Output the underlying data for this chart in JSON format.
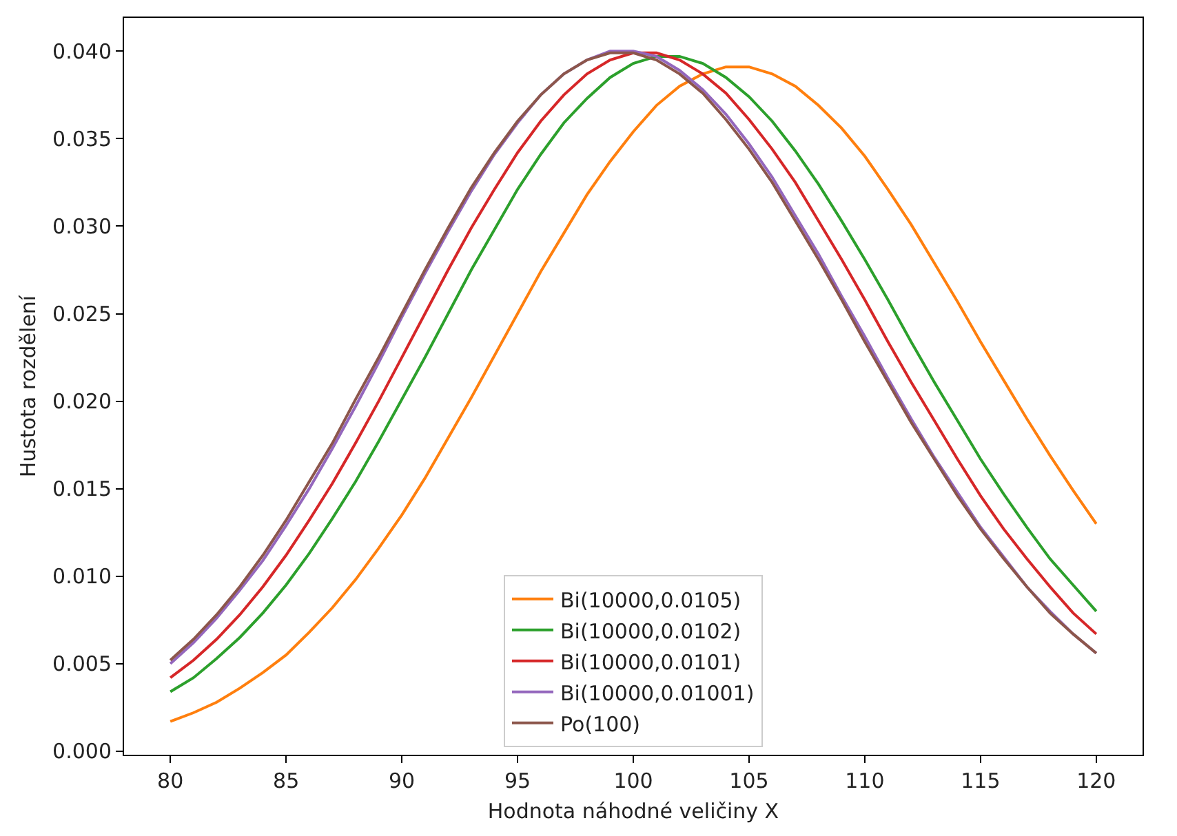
{
  "chart_data": {
    "type": "line",
    "xlabel": "Hodnota náhodné veličiny X",
    "ylabel": "Hustota rozdělení",
    "x": [
      80,
      81,
      82,
      83,
      84,
      85,
      86,
      87,
      88,
      89,
      90,
      91,
      92,
      93,
      94,
      95,
      96,
      97,
      98,
      99,
      100,
      101,
      102,
      103,
      104,
      105,
      106,
      107,
      108,
      109,
      110,
      111,
      112,
      113,
      114,
      115,
      116,
      117,
      118,
      119,
      120
    ],
    "series": [
      {
        "name": "Bi(10000,0.0105)",
        "color": "#ff7f0e",
        "values": [
          0.0017,
          0.0022,
          0.0028,
          0.0036,
          0.0045,
          0.0055,
          0.0068,
          0.0082,
          0.0098,
          0.0116,
          0.0135,
          0.0156,
          0.0179,
          0.0202,
          0.0226,
          0.025,
          0.0274,
          0.0296,
          0.0318,
          0.0337,
          0.0354,
          0.0369,
          0.038,
          0.0387,
          0.0391,
          0.0391,
          0.0387,
          0.038,
          0.0369,
          0.0356,
          0.034,
          0.0321,
          0.0301,
          0.0279,
          0.0257,
          0.0234,
          0.0212,
          0.019,
          0.0169,
          0.0149,
          0.013
        ]
      },
      {
        "name": "Bi(10000,0.0102)",
        "color": "#2ca02c",
        "values": [
          0.0034,
          0.0042,
          0.0053,
          0.0065,
          0.0079,
          0.0095,
          0.0113,
          0.0133,
          0.0154,
          0.0177,
          0.0201,
          0.0225,
          0.025,
          0.0275,
          0.0298,
          0.0321,
          0.0341,
          0.0359,
          0.0373,
          0.0385,
          0.0393,
          0.0397,
          0.0397,
          0.0393,
          0.0385,
          0.0374,
          0.036,
          0.0343,
          0.0324,
          0.0303,
          0.0281,
          0.0258,
          0.0234,
          0.0211,
          0.0189,
          0.0167,
          0.0147,
          0.0128,
          0.011,
          0.0095,
          0.008
        ]
      },
      {
        "name": "Bi(10000,0.0101)",
        "color": "#d62728",
        "values": [
          0.0042,
          0.0052,
          0.0064,
          0.0078,
          0.0094,
          0.0112,
          0.0132,
          0.0153,
          0.0176,
          0.02,
          0.0225,
          0.025,
          0.0275,
          0.0299,
          0.0321,
          0.0342,
          0.036,
          0.0375,
          0.0387,
          0.0395,
          0.0399,
          0.0399,
          0.0395,
          0.0387,
          0.0376,
          0.0361,
          0.0344,
          0.0325,
          0.0303,
          0.0281,
          0.0258,
          0.0234,
          0.0211,
          0.0189,
          0.0167,
          0.0146,
          0.0127,
          0.011,
          0.0094,
          0.0079,
          0.0067
        ]
      },
      {
        "name": "Bi(10000,0.01001)",
        "color": "#9467bd",
        "values": [
          0.005,
          0.0062,
          0.0076,
          0.0092,
          0.0109,
          0.0129,
          0.015,
          0.0173,
          0.0197,
          0.0222,
          0.0248,
          0.0273,
          0.0297,
          0.032,
          0.0341,
          0.0359,
          0.0375,
          0.0387,
          0.0395,
          0.04,
          0.04,
          0.0397,
          0.0389,
          0.0378,
          0.0364,
          0.0347,
          0.0328,
          0.0306,
          0.0284,
          0.026,
          0.0237,
          0.0213,
          0.019,
          0.0168,
          0.0148,
          0.0128,
          0.0111,
          0.0094,
          0.008,
          0.0067,
          0.0056
        ]
      },
      {
        "name": "Po(100)",
        "color": "#8c564b",
        "values": [
          0.0052,
          0.0064,
          0.0078,
          0.0094,
          0.0112,
          0.0132,
          0.0154,
          0.0176,
          0.0201,
          0.0225,
          0.025,
          0.0275,
          0.0299,
          0.0322,
          0.0342,
          0.036,
          0.0375,
          0.0387,
          0.0395,
          0.0399,
          0.0399,
          0.0395,
          0.0387,
          0.0376,
          0.0361,
          0.0344,
          0.0325,
          0.0303,
          0.0281,
          0.0258,
          0.0234,
          0.0211,
          0.0188,
          0.0167,
          0.0146,
          0.0127,
          0.011,
          0.0094,
          0.0079,
          0.0067,
          0.0056
        ]
      }
    ],
    "xlim": [
      78,
      122
    ],
    "xticks": [
      80,
      85,
      90,
      95,
      100,
      105,
      110,
      115,
      120
    ],
    "ylim": [
      -0.0002,
      0.0419
    ],
    "yticks": [
      {
        "value": 0,
        "label": "0.000"
      },
      {
        "value": 0.005,
        "label": "0.005"
      },
      {
        "value": 0.01,
        "label": "0.010"
      },
      {
        "value": 0.015,
        "label": "0.015"
      },
      {
        "value": 0.02,
        "label": "0.020"
      },
      {
        "value": 0.025,
        "label": "0.025"
      },
      {
        "value": 0.03,
        "label": "0.030"
      },
      {
        "value": 0.035,
        "label": "0.035"
      },
      {
        "value": 0.04,
        "label": "0.040"
      }
    ],
    "legend": "bottom",
    "marker": "none",
    "line_style": "solid"
  }
}
